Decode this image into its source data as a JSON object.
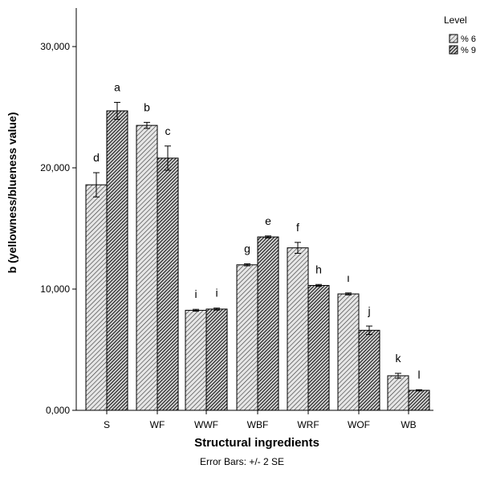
{
  "chart_data": {
    "type": "bar",
    "xlabel": "Structural ingredients",
    "ylabel": "b (yellowness/blueness value)",
    "ylim": [
      0,
      32000
    ],
    "yticks": [
      0,
      10000,
      20000,
      30000
    ],
    "ytick_labels": [
      "0,000",
      "10,000",
      "20,000",
      "30,000"
    ],
    "categories": [
      "S",
      "WF",
      "WWF",
      "WBF",
      "WRF",
      "WOF",
      "WB"
    ],
    "legend_title": "Level",
    "legend_position": "top-right",
    "series": [
      {
        "name": "% 6",
        "pattern": "light-hatch",
        "values": [
          18600,
          23500,
          8250,
          12000,
          13400,
          9600,
          2850
        ],
        "errors": [
          1000,
          250,
          80,
          80,
          450,
          80,
          200
        ],
        "letters": [
          "d",
          "b",
          "i",
          "g",
          "f",
          "ı",
          "k"
        ]
      },
      {
        "name": "% 9",
        "pattern": "dark-hatch",
        "values": [
          24700,
          20800,
          8350,
          14300,
          10300,
          6600,
          1650
        ],
        "errors": [
          700,
          1000,
          80,
          80,
          80,
          350,
          50
        ],
        "letters": [
          "a",
          "c",
          "i",
          "e",
          "h",
          "j",
          "l"
        ]
      }
    ],
    "footnote": "Error Bars: +/- 2 SE",
    "colors": {
      "light_fill": "#d9d9d9",
      "dark_fill": "#3a3a3a",
      "axis": "#000000"
    }
  }
}
